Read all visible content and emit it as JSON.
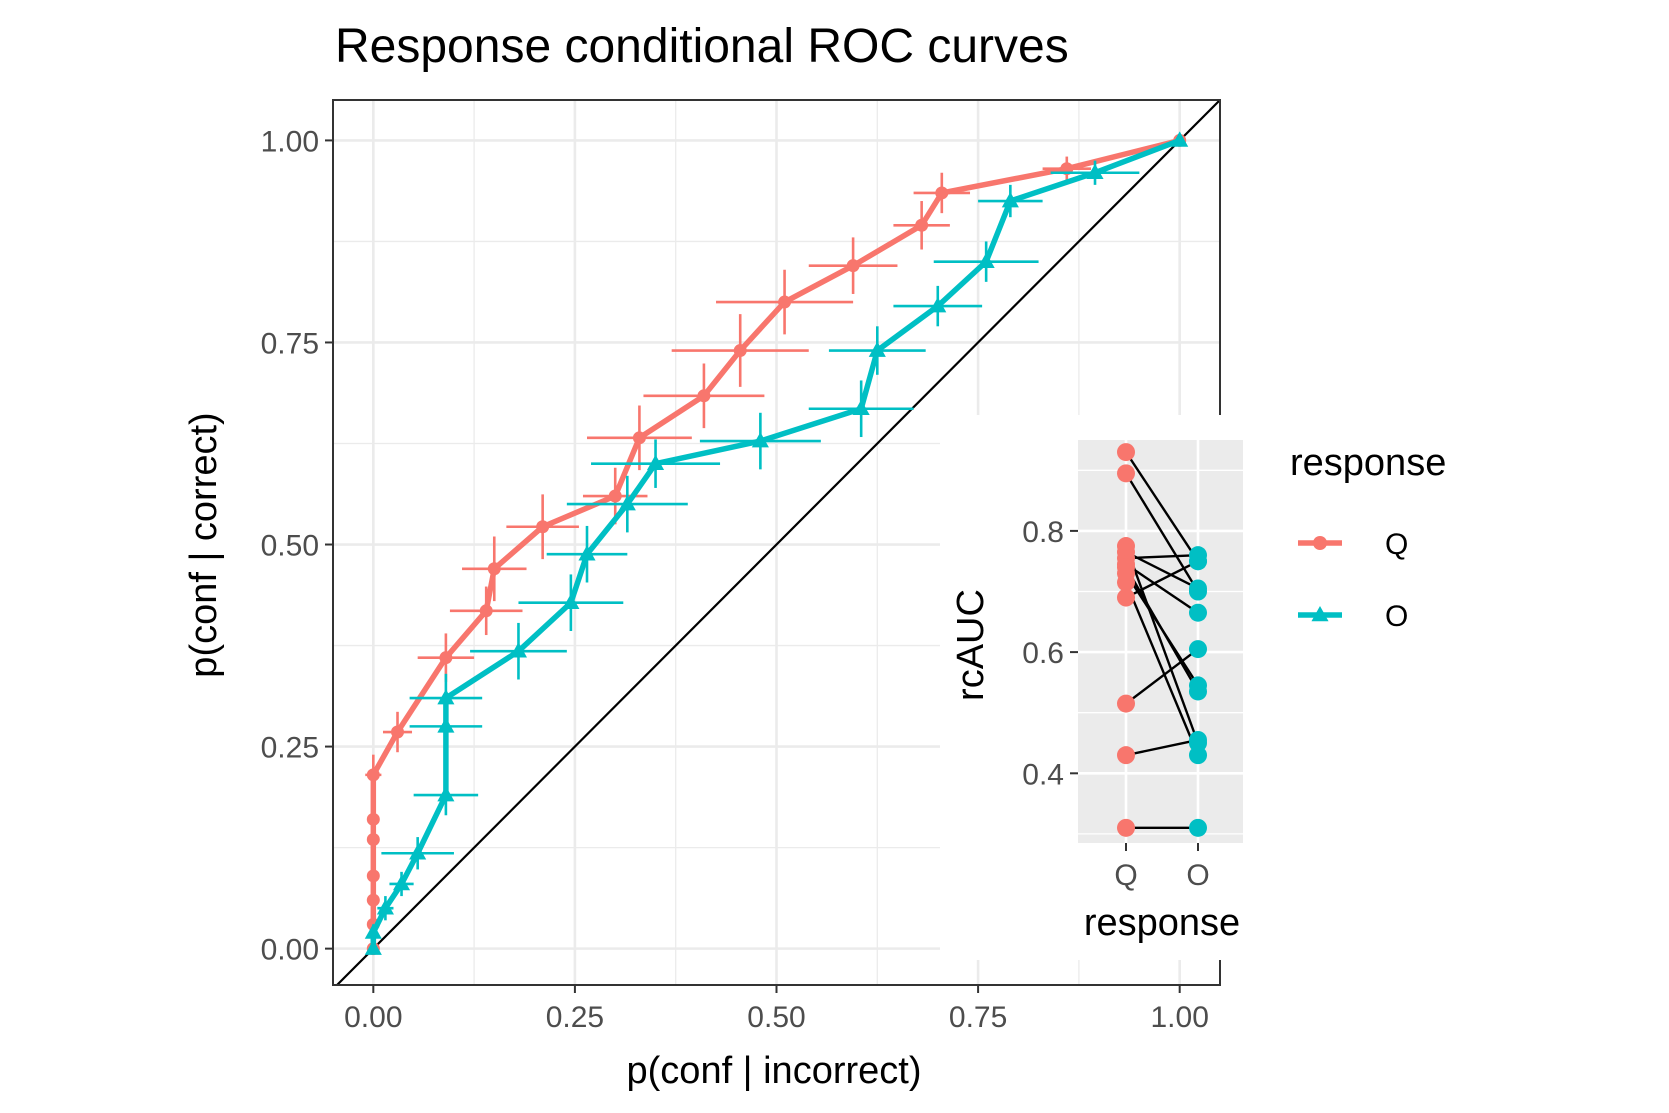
{
  "chart_data": [
    {
      "type": "line",
      "title": "Response conditional ROC curves",
      "xlabel": "p(conf | incorrect)",
      "ylabel": "p(conf | correct)",
      "xlim": [
        -0.05,
        1.05
      ],
      "ylim": [
        -0.045,
        1.05
      ],
      "x_ticks": [
        "0.00",
        "0.25",
        "0.50",
        "0.75",
        "1.00"
      ],
      "y_ticks": [
        "0.00",
        "0.25",
        "0.50",
        "0.75",
        "1.00"
      ],
      "grid": true,
      "diagonal": true,
      "series": [
        {
          "name": "Q",
          "color": "#F8766D",
          "marker": "circle",
          "points": [
            {
              "x": 0.0,
              "y": 0.0,
              "xerr": 0.0,
              "yerr": 0.0
            },
            {
              "x": 0.0,
              "y": 0.03,
              "xerr": 0.0,
              "yerr": 0.005
            },
            {
              "x": 0.0,
              "y": 0.06,
              "xerr": 0.0,
              "yerr": 0.008
            },
            {
              "x": 0.0,
              "y": 0.09,
              "xerr": 0.0,
              "yerr": 0.01
            },
            {
              "x": 0.0,
              "y": 0.135,
              "xerr": 0.0,
              "yerr": 0.012
            },
            {
              "x": 0.0,
              "y": 0.16,
              "xerr": 0.0,
              "yerr": 0.012
            },
            {
              "x": 0.0,
              "y": 0.215,
              "xerr": 0.01,
              "yerr": 0.025
            },
            {
              "x": 0.03,
              "y": 0.268,
              "xerr": 0.018,
              "yerr": 0.025
            },
            {
              "x": 0.09,
              "y": 0.36,
              "xerr": 0.035,
              "yerr": 0.03
            },
            {
              "x": 0.14,
              "y": 0.418,
              "xerr": 0.045,
              "yerr": 0.03
            },
            {
              "x": 0.15,
              "y": 0.47,
              "xerr": 0.04,
              "yerr": 0.04
            },
            {
              "x": 0.21,
              "y": 0.522,
              "xerr": 0.045,
              "yerr": 0.04
            },
            {
              "x": 0.3,
              "y": 0.56,
              "xerr": 0.04,
              "yerr": 0.035
            },
            {
              "x": 0.33,
              "y": 0.632,
              "xerr": 0.065,
              "yerr": 0.04
            },
            {
              "x": 0.41,
              "y": 0.684,
              "xerr": 0.075,
              "yerr": 0.04
            },
            {
              "x": 0.455,
              "y": 0.74,
              "xerr": 0.085,
              "yerr": 0.045
            },
            {
              "x": 0.51,
              "y": 0.8,
              "xerr": 0.085,
              "yerr": 0.04
            },
            {
              "x": 0.595,
              "y": 0.845,
              "xerr": 0.055,
              "yerr": 0.035
            },
            {
              "x": 0.68,
              "y": 0.895,
              "xerr": 0.035,
              "yerr": 0.03
            },
            {
              "x": 0.705,
              "y": 0.935,
              "xerr": 0.035,
              "yerr": 0.025
            },
            {
              "x": 0.86,
              "y": 0.965,
              "xerr": 0.03,
              "yerr": 0.015
            },
            {
              "x": 1.0,
              "y": 1.0,
              "xerr": 0.0,
              "yerr": 0.0
            }
          ]
        },
        {
          "name": "O",
          "color": "#00BFC4",
          "marker": "triangle",
          "points": [
            {
              "x": 0.0,
              "y": 0.0,
              "xerr": 0.0,
              "yerr": 0.0
            },
            {
              "x": 0.0,
              "y": 0.02,
              "xerr": 0.005,
              "yerr": 0.01
            },
            {
              "x": 0.015,
              "y": 0.05,
              "xerr": 0.01,
              "yerr": 0.015
            },
            {
              "x": 0.035,
              "y": 0.08,
              "xerr": 0.015,
              "yerr": 0.015
            },
            {
              "x": 0.055,
              "y": 0.118,
              "xerr": 0.045,
              "yerr": 0.02
            },
            {
              "x": 0.09,
              "y": 0.19,
              "xerr": 0.04,
              "yerr": 0.025
            },
            {
              "x": 0.09,
              "y": 0.275,
              "xerr": 0.045,
              "yerr": 0.03
            },
            {
              "x": 0.09,
              "y": 0.31,
              "xerr": 0.045,
              "yerr": 0.03
            },
            {
              "x": 0.18,
              "y": 0.368,
              "xerr": 0.06,
              "yerr": 0.035
            },
            {
              "x": 0.245,
              "y": 0.428,
              "xerr": 0.065,
              "yerr": 0.035
            },
            {
              "x": 0.265,
              "y": 0.488,
              "xerr": 0.05,
              "yerr": 0.035
            },
            {
              "x": 0.315,
              "y": 0.55,
              "xerr": 0.075,
              "yerr": 0.035
            },
            {
              "x": 0.35,
              "y": 0.6,
              "xerr": 0.08,
              "yerr": 0.03
            },
            {
              "x": 0.48,
              "y": 0.628,
              "xerr": 0.075,
              "yerr": 0.035
            },
            {
              "x": 0.605,
              "y": 0.668,
              "xerr": 0.065,
              "yerr": 0.035
            },
            {
              "x": 0.625,
              "y": 0.74,
              "xerr": 0.06,
              "yerr": 0.03
            },
            {
              "x": 0.7,
              "y": 0.795,
              "xerr": 0.055,
              "yerr": 0.025
            },
            {
              "x": 0.76,
              "y": 0.85,
              "xerr": 0.065,
              "yerr": 0.025
            },
            {
              "x": 0.79,
              "y": 0.925,
              "xerr": 0.04,
              "yerr": 0.02
            },
            {
              "x": 0.895,
              "y": 0.96,
              "xerr": 0.055,
              "yerr": 0.015
            },
            {
              "x": 1.0,
              "y": 1.0,
              "xerr": 0.0,
              "yerr": 0.0
            }
          ]
        }
      ],
      "legend": {
        "title": "response",
        "position": "right",
        "entries": [
          {
            "label": "Q",
            "color": "#F8766D",
            "marker": "circle"
          },
          {
            "label": "O",
            "color": "#00BFC4",
            "marker": "triangle"
          }
        ]
      }
    },
    {
      "type": "scatter",
      "inset": true,
      "xlabel": "response",
      "ylabel": "rcAUC",
      "categories": [
        "Q",
        "O"
      ],
      "ylim": [
        0.285,
        0.95
      ],
      "y_ticks": [
        "0.4",
        "0.6",
        "0.8"
      ],
      "y_tick_values": [
        0.4,
        0.6,
        0.8
      ],
      "grid": true,
      "paired": [
        {
          "Q": 0.93,
          "O": 0.75
        },
        {
          "Q": 0.895,
          "O": 0.7
        },
        {
          "Q": 0.775,
          "O": 0.45
        },
        {
          "Q": 0.765,
          "O": 0.705
        },
        {
          "Q": 0.755,
          "O": 0.76
        },
        {
          "Q": 0.745,
          "O": 0.665
        },
        {
          "Q": 0.74,
          "O": 0.535
        },
        {
          "Q": 0.73,
          "O": 0.545
        },
        {
          "Q": 0.715,
          "O": 0.43
        },
        {
          "Q": 0.69,
          "O": 0.75
        },
        {
          "Q": 0.515,
          "O": 0.605
        },
        {
          "Q": 0.43,
          "O": 0.455
        },
        {
          "Q": 0.31,
          "O": 0.31
        }
      ],
      "colors": {
        "Q": "#F8766D",
        "O": "#00BFC4"
      }
    }
  ]
}
